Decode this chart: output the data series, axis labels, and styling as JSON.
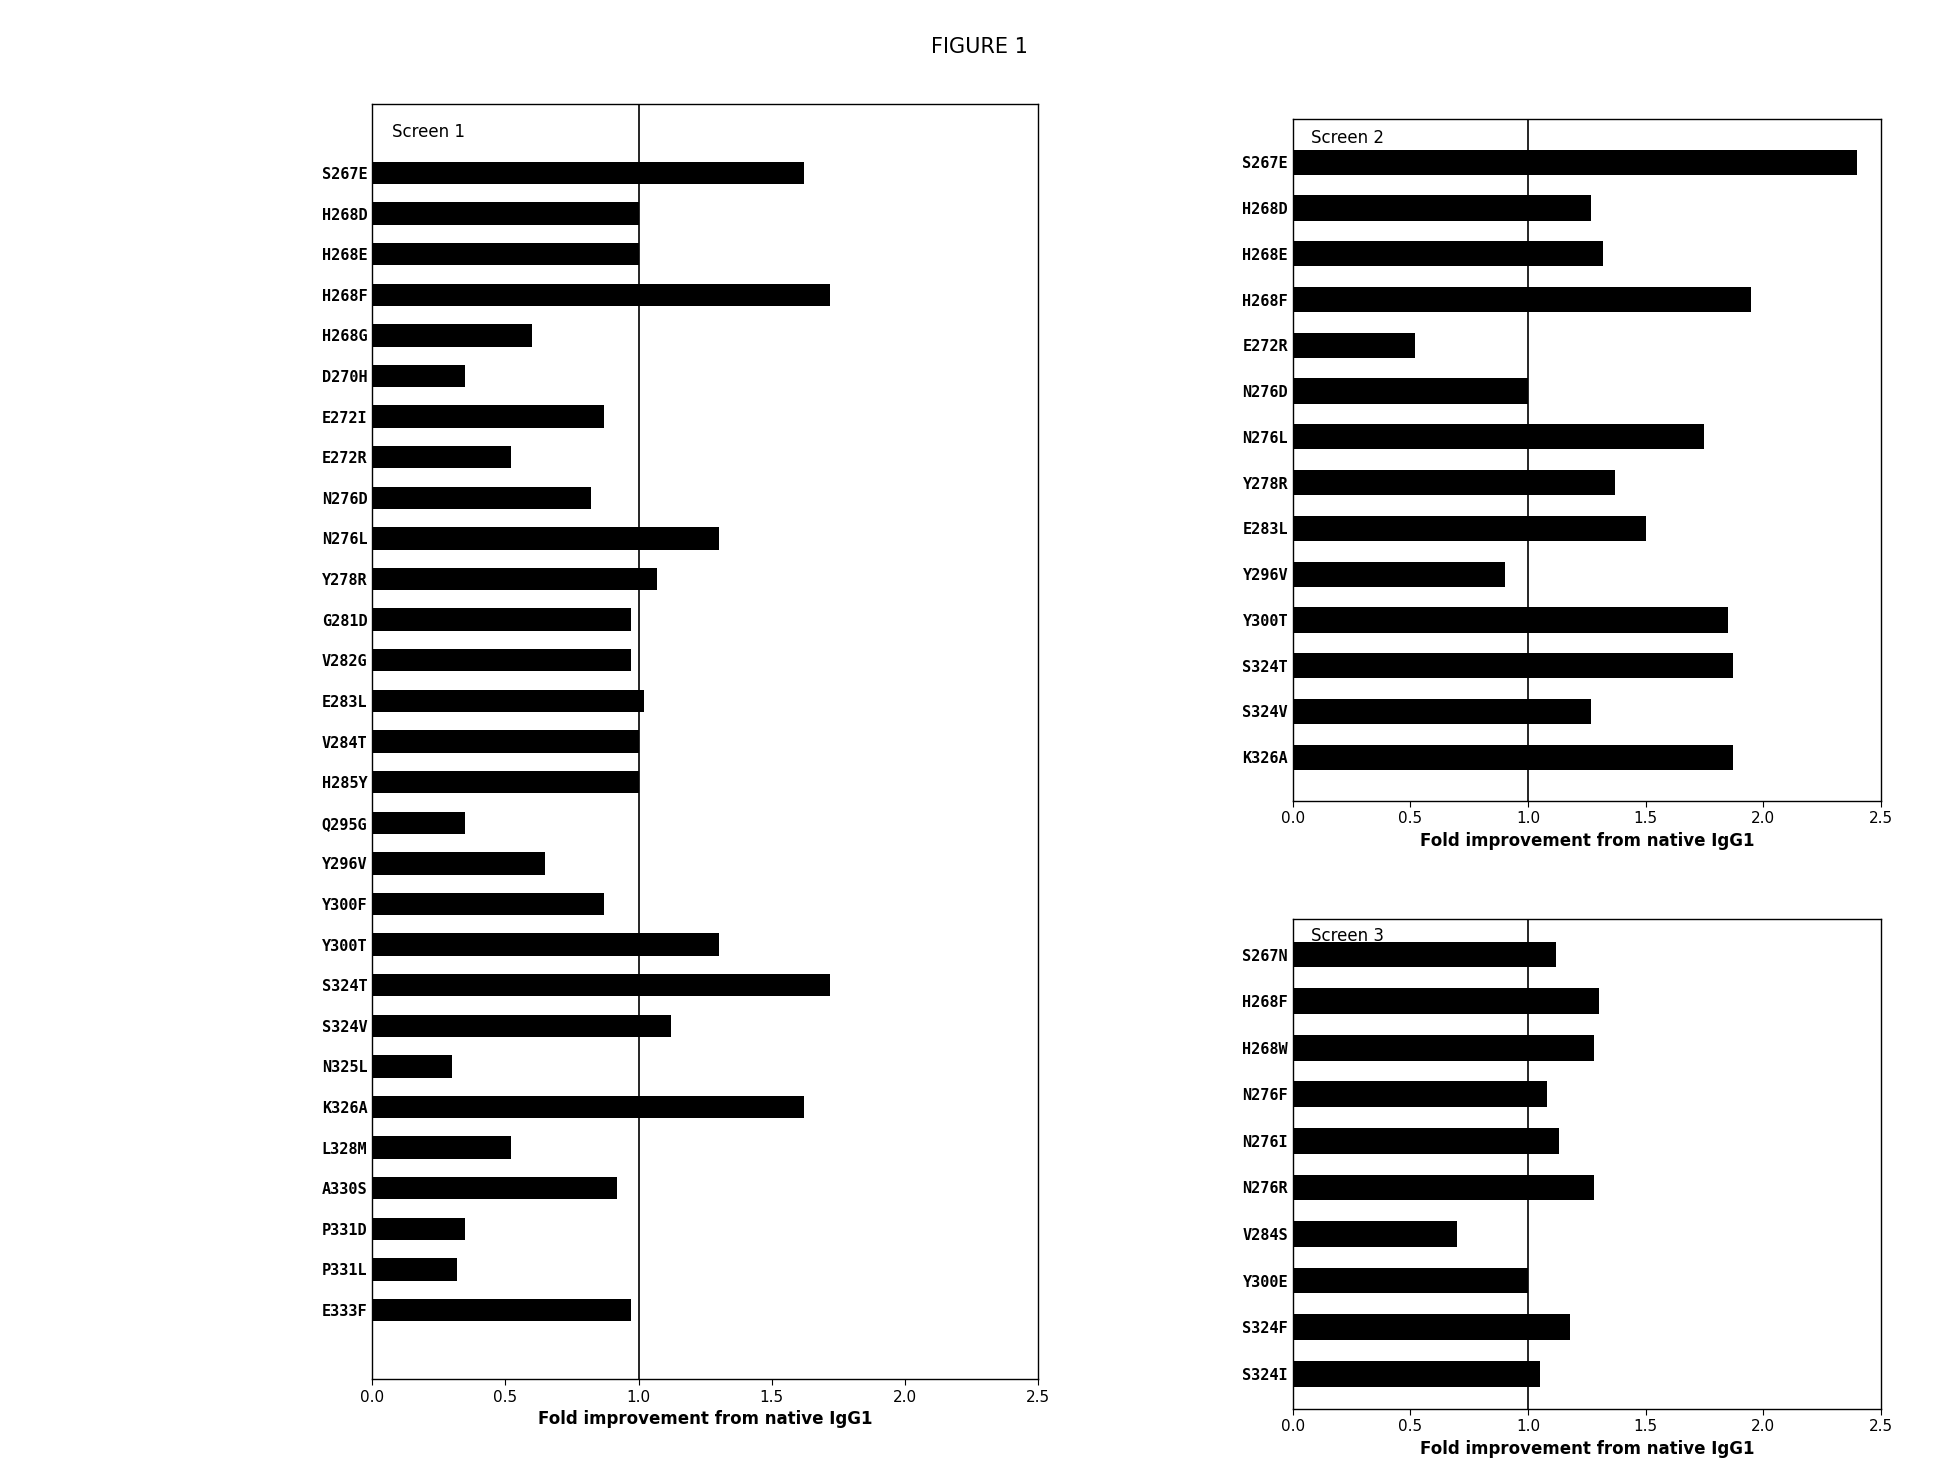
{
  "title": "FIGURE 1",
  "screen1": {
    "label": "Screen 1",
    "categories": [
      "S267E",
      "H268D",
      "H268E",
      "H268F",
      "H268G",
      "D270H",
      "E272I",
      "E272R",
      "N276D",
      "N276L",
      "Y278R",
      "G281D",
      "V282G",
      "E283L",
      "V284T",
      "H285Y",
      "Q295G",
      "Y296V",
      "Y300F",
      "Y300T",
      "S324T",
      "S324V",
      "N325L",
      "K326A",
      "L328M",
      "A330S",
      "P331D",
      "P331L",
      "E333F"
    ],
    "values": [
      1.62,
      1.0,
      1.0,
      1.72,
      0.6,
      0.35,
      0.87,
      0.52,
      0.82,
      1.3,
      1.07,
      0.97,
      0.97,
      1.02,
      1.0,
      1.0,
      0.35,
      0.65,
      0.87,
      1.3,
      1.72,
      1.12,
      0.3,
      1.62,
      0.52,
      0.92,
      0.35,
      0.32,
      0.97
    ],
    "xlabel": "Fold improvement from native IgG1",
    "xlim": [
      0.0,
      2.5
    ],
    "xticks": [
      0.0,
      0.5,
      1.0,
      1.5,
      2.0,
      2.5
    ]
  },
  "screen2": {
    "label": "Screen 2",
    "categories": [
      "S267E",
      "H268D",
      "H268E",
      "H268F",
      "E272R",
      "N276D",
      "N276L",
      "Y278R",
      "E283L",
      "Y296V",
      "Y300T",
      "S324T",
      "S324V",
      "K326A"
    ],
    "values": [
      2.4,
      1.27,
      1.32,
      1.95,
      0.52,
      1.0,
      1.75,
      1.37,
      1.5,
      0.9,
      1.85,
      1.87,
      1.27,
      1.87
    ],
    "xlabel": "Fold improvement from native IgG1",
    "xlim": [
      0.0,
      2.5
    ],
    "xticks": [
      0.0,
      0.5,
      1.0,
      1.5,
      2.0,
      2.5
    ]
  },
  "screen3": {
    "label": "Screen 3",
    "categories": [
      "S267N",
      "H268F",
      "H268W",
      "N276F",
      "N276I",
      "N276R",
      "V284S",
      "Y300E",
      "S324F",
      "S324I"
    ],
    "values": [
      1.12,
      1.3,
      1.28,
      1.08,
      1.13,
      1.28,
      0.7,
      1.0,
      1.18,
      1.05
    ],
    "xlabel": "Fold improvement from native IgG1",
    "xlim": [
      0.0,
      2.5
    ],
    "xticks": [
      0.0,
      0.5,
      1.0,
      1.5,
      2.0,
      2.5
    ]
  },
  "bar_color": "#000000",
  "bg_color": "#ffffff",
  "title_fontsize": 15,
  "label_fontsize": 12,
  "tick_fontsize": 11,
  "cat_fontsize": 11
}
